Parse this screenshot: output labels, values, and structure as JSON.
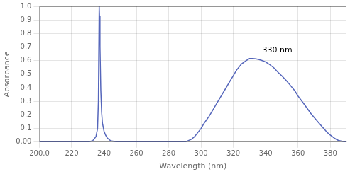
{
  "chart_data": {
    "type": "line",
    "xlabel": "Wavelength (nm)",
    "ylabel": "Absorbance",
    "x": [
      200,
      220,
      230,
      233,
      235,
      236,
      236.5,
      237,
      237.2,
      237.5,
      238,
      238.5,
      239,
      240,
      241,
      242,
      244,
      246,
      248,
      250,
      255,
      260,
      265,
      270,
      275,
      280,
      282,
      284,
      286,
      288,
      290,
      292,
      294,
      296,
      298,
      300,
      302,
      305,
      308,
      310,
      313,
      315,
      318,
      320,
      322,
      325,
      328,
      330,
      332,
      334,
      336,
      338,
      340,
      342,
      345,
      348,
      350,
      353,
      355,
      358,
      360,
      363,
      365,
      368,
      370,
      373,
      375,
      378,
      380,
      383,
      385,
      388,
      390
    ],
    "values": [
      0.0,
      0.0,
      0.0,
      0.01,
      0.04,
      0.1,
      0.3,
      1.0,
      0.93,
      0.7,
      0.38,
      0.22,
      0.14,
      0.08,
      0.05,
      0.03,
      0.01,
      0.005,
      0.002,
      0.0,
      0.0,
      0.0,
      0.0,
      0.0,
      0.0,
      0.0,
      0.0,
      0.0,
      0.0,
      0.0,
      0.0,
      0.01,
      0.02,
      0.04,
      0.07,
      0.1,
      0.14,
      0.19,
      0.25,
      0.29,
      0.35,
      0.39,
      0.45,
      0.49,
      0.53,
      0.575,
      0.6,
      0.615,
      0.615,
      0.613,
      0.608,
      0.6,
      0.59,
      0.575,
      0.548,
      0.51,
      0.488,
      0.45,
      0.422,
      0.378,
      0.34,
      0.292,
      0.26,
      0.21,
      0.182,
      0.14,
      0.112,
      0.072,
      0.052,
      0.025,
      0.012,
      0.004,
      0.002
    ],
    "color": "#5566bb",
    "xlim": [
      200,
      390
    ],
    "ylim": [
      0,
      1.0
    ],
    "xticks": [
      {
        "value": 200,
        "label": "200.0"
      },
      220,
      240,
      260,
      280,
      300,
      320,
      340,
      360,
      380
    ],
    "yticks": [
      {
        "value": 0,
        "label": "0.00"
      },
      0.1,
      0.2,
      0.3,
      0.4,
      0.5,
      0.6,
      0.7,
      0.8,
      0.9,
      {
        "value": 1,
        "label": "1.0"
      }
    ],
    "annotations": [
      {
        "text": "330 nm",
        "x": 338,
        "y": 0.645
      }
    ],
    "grid": true
  }
}
